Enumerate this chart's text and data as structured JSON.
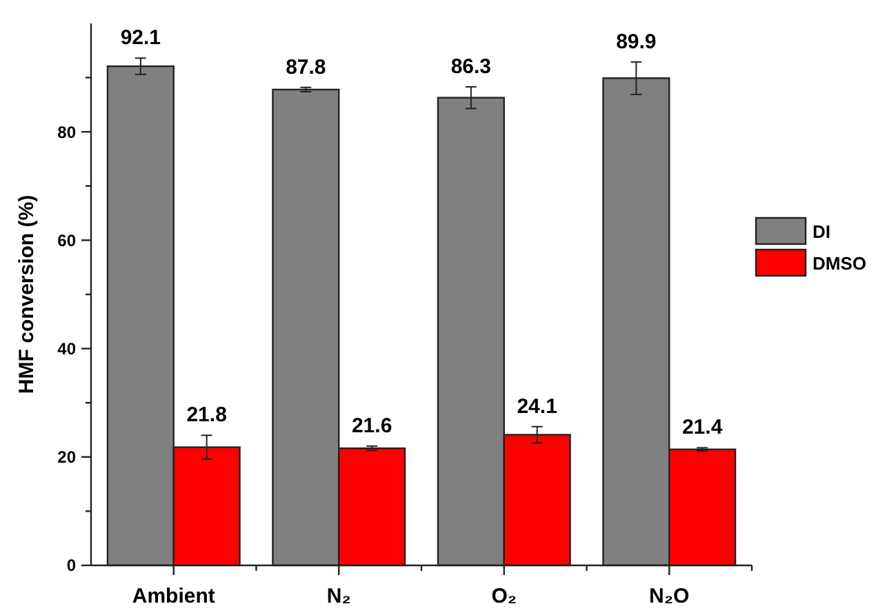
{
  "chart_data": {
    "type": "bar",
    "ylabel": "HMF conversion (%)",
    "categories": [
      "Ambient",
      "N₂",
      "O₂",
      "N₂O"
    ],
    "series": [
      {
        "name": "DI",
        "color": "#808080",
        "values": [
          92.1,
          87.8,
          86.3,
          89.9
        ],
        "errors": [
          1.5,
          0.4,
          2,
          3
        ]
      },
      {
        "name": "DMSO",
        "color": "#ff0000",
        "values": [
          21.8,
          21.6,
          24.1,
          21.4
        ],
        "errors": [
          2.2,
          0.4,
          1.5,
          0.3
        ]
      }
    ],
    "ylim": [
      0,
      100
    ],
    "yticks": [
      0,
      {
        "value": 10,
        "label": null
      },
      20,
      {
        "value": 30,
        "label": null
      },
      40,
      {
        "value": 50,
        "label": null
      },
      60,
      {
        "value": 70,
        "label": null
      },
      80,
      {
        "value": 90,
        "label": null
      }
    ],
    "data_labels": true,
    "legend": "right",
    "grid": false
  }
}
